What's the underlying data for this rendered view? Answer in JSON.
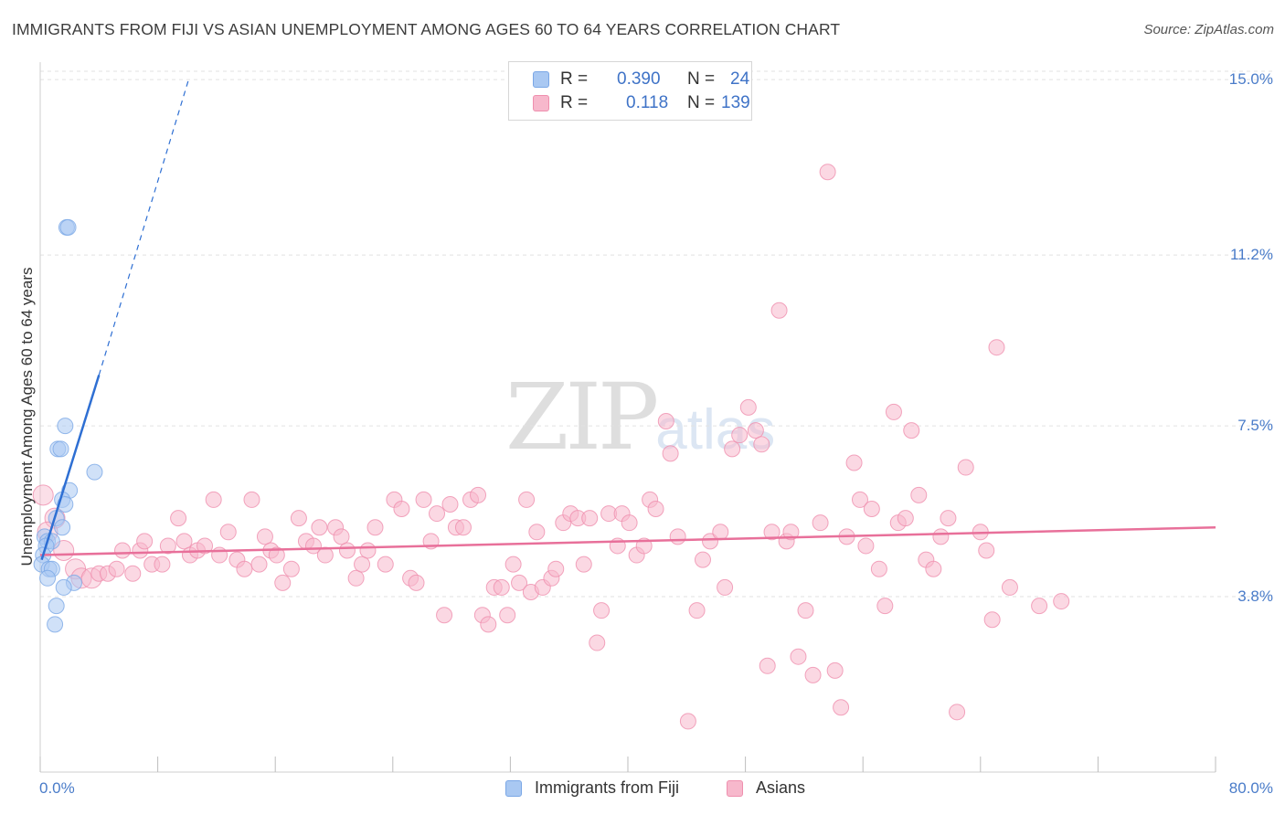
{
  "title": "IMMIGRANTS FROM FIJI VS ASIAN UNEMPLOYMENT AMONG AGES 60 TO 64 YEARS CORRELATION CHART",
  "source": "Source: ZipAtlas.com",
  "watermark": {
    "zip": "ZIP",
    "atlas": "atlas"
  },
  "legend": {
    "rows": [
      {
        "r_label": "R =",
        "r_value": "0.390",
        "n_label": "N =",
        "n_value": "24",
        "color": "#a9c8f2"
      },
      {
        "r_label": "R =",
        "r_value": "0.118",
        "n_label": "N =",
        "n_value": "139",
        "color": "#f7b8cc"
      }
    ]
  },
  "bottom_legend": [
    {
      "label": "Immigrants from Fiji",
      "color": "#a9c8f2"
    },
    {
      "label": "Asians",
      "color": "#f7b8cc"
    }
  ],
  "chart_data": {
    "type": "scatter",
    "title": "IMMIGRANTS FROM FIJI VS ASIAN UNEMPLOYMENT AMONG AGES 60 TO 64 YEARS CORRELATION CHART",
    "xlabel": "",
    "ylabel": "Unemployment Among Ages 60 to 64 years",
    "xlim": [
      0,
      80
    ],
    "ylim": [
      0,
      15.3
    ],
    "x_tick_labels": [
      "0.0%",
      "80.0%"
    ],
    "y_ticks": [
      3.8,
      7.5,
      11.2,
      15.0
    ],
    "y_tick_labels": [
      "3.8%",
      "7.5%",
      "11.2%",
      "15.0%"
    ],
    "grid": "horizontal dashed",
    "series": [
      {
        "name": "Immigrants from Fiji",
        "color": "#7aa7e6",
        "fill": "#a9c8f2",
        "trend": {
          "x0": 0.1,
          "y0": 4.6,
          "x1": 4.0,
          "y1": 8.6,
          "dashed_to_x": 10.1,
          "dashed_to_y": 15.0,
          "color": "#2e6fd3"
        },
        "points": [
          [
            1.8,
            11.8
          ],
          [
            1.9,
            11.8
          ],
          [
            1.7,
            7.5
          ],
          [
            1.2,
            7.0
          ],
          [
            1.4,
            7.0
          ],
          [
            3.7,
            6.5
          ],
          [
            2.0,
            6.1
          ],
          [
            1.5,
            5.9
          ],
          [
            1.7,
            5.8
          ],
          [
            1.1,
            5.5
          ],
          [
            1.5,
            5.3
          ],
          [
            0.3,
            5.1
          ],
          [
            0.5,
            5.0
          ],
          [
            0.8,
            5.0
          ],
          [
            0.4,
            4.9
          ],
          [
            0.2,
            4.7
          ],
          [
            0.1,
            4.5
          ],
          [
            0.6,
            4.4
          ],
          [
            0.8,
            4.4
          ],
          [
            0.5,
            4.2
          ],
          [
            2.3,
            4.1
          ],
          [
            1.6,
            4.0
          ],
          [
            1.1,
            3.6
          ],
          [
            1.0,
            3.2
          ]
        ]
      },
      {
        "name": "Asians",
        "color": "#ef8fae",
        "fill": "#f7b8cc",
        "trend": {
          "x0": 0.0,
          "y0": 4.7,
          "x1": 80.0,
          "y1": 5.3,
          "color": "#e8709a"
        },
        "points": [
          [
            0.2,
            6.0
          ],
          [
            1.0,
            5.5
          ],
          [
            0.5,
            5.2
          ],
          [
            1.6,
            4.8
          ],
          [
            2.4,
            4.4
          ],
          [
            2.8,
            4.2
          ],
          [
            3.5,
            4.2
          ],
          [
            4.0,
            4.3
          ],
          [
            4.6,
            4.3
          ],
          [
            5.2,
            4.4
          ],
          [
            5.6,
            4.8
          ],
          [
            6.3,
            4.3
          ],
          [
            6.8,
            4.8
          ],
          [
            7.1,
            5.0
          ],
          [
            7.6,
            4.5
          ],
          [
            8.3,
            4.5
          ],
          [
            8.7,
            4.9
          ],
          [
            9.4,
            5.5
          ],
          [
            9.8,
            5.0
          ],
          [
            10.2,
            4.7
          ],
          [
            10.7,
            4.8
          ],
          [
            11.2,
            4.9
          ],
          [
            11.8,
            5.9
          ],
          [
            12.2,
            4.7
          ],
          [
            12.8,
            5.2
          ],
          [
            13.4,
            4.6
          ],
          [
            13.9,
            4.4
          ],
          [
            14.4,
            5.9
          ],
          [
            14.9,
            4.5
          ],
          [
            15.3,
            5.1
          ],
          [
            15.7,
            4.8
          ],
          [
            16.1,
            4.7
          ],
          [
            16.5,
            4.1
          ],
          [
            17.1,
            4.4
          ],
          [
            17.6,
            5.5
          ],
          [
            18.1,
            5.0
          ],
          [
            18.6,
            4.9
          ],
          [
            19.0,
            5.3
          ],
          [
            19.4,
            4.7
          ],
          [
            20.1,
            5.3
          ],
          [
            20.5,
            5.1
          ],
          [
            20.9,
            4.8
          ],
          [
            21.5,
            4.2
          ],
          [
            21.9,
            4.5
          ],
          [
            22.3,
            4.8
          ],
          [
            22.8,
            5.3
          ],
          [
            23.5,
            4.5
          ],
          [
            24.1,
            5.9
          ],
          [
            24.6,
            5.7
          ],
          [
            25.2,
            4.2
          ],
          [
            25.6,
            4.1
          ],
          [
            26.1,
            5.9
          ],
          [
            26.6,
            5.0
          ],
          [
            27.0,
            5.6
          ],
          [
            27.5,
            3.4
          ],
          [
            27.9,
            5.8
          ],
          [
            28.3,
            5.3
          ],
          [
            28.8,
            5.3
          ],
          [
            29.3,
            5.9
          ],
          [
            29.8,
            6.0
          ],
          [
            30.1,
            3.4
          ],
          [
            30.5,
            3.2
          ],
          [
            30.9,
            4.0
          ],
          [
            31.4,
            4.0
          ],
          [
            31.8,
            3.4
          ],
          [
            32.2,
            4.5
          ],
          [
            32.6,
            4.1
          ],
          [
            33.1,
            5.9
          ],
          [
            33.4,
            3.9
          ],
          [
            33.8,
            5.2
          ],
          [
            34.2,
            4.0
          ],
          [
            34.8,
            4.2
          ],
          [
            35.1,
            4.4
          ],
          [
            35.6,
            5.4
          ],
          [
            36.1,
            5.6
          ],
          [
            36.6,
            5.5
          ],
          [
            37.0,
            4.5
          ],
          [
            37.4,
            5.5
          ],
          [
            37.9,
            2.8
          ],
          [
            38.2,
            3.5
          ],
          [
            38.7,
            5.6
          ],
          [
            39.3,
            4.9
          ],
          [
            39.6,
            5.6
          ],
          [
            40.1,
            5.4
          ],
          [
            40.6,
            4.7
          ],
          [
            41.1,
            4.9
          ],
          [
            41.5,
            5.9
          ],
          [
            41.9,
            5.7
          ],
          [
            42.6,
            7.6
          ],
          [
            42.9,
            6.9
          ],
          [
            43.4,
            5.1
          ],
          [
            44.1,
            1.1
          ],
          [
            44.7,
            3.5
          ],
          [
            45.1,
            4.6
          ],
          [
            45.6,
            5.0
          ],
          [
            46.3,
            5.2
          ],
          [
            46.6,
            4.0
          ],
          [
            47.1,
            7.0
          ],
          [
            47.6,
            7.3
          ],
          [
            48.2,
            7.9
          ],
          [
            48.7,
            7.4
          ],
          [
            49.1,
            7.1
          ],
          [
            49.5,
            2.3
          ],
          [
            49.8,
            5.2
          ],
          [
            50.3,
            10.0
          ],
          [
            50.8,
            5.0
          ],
          [
            51.1,
            5.2
          ],
          [
            51.6,
            2.5
          ],
          [
            52.1,
            3.5
          ],
          [
            52.6,
            2.1
          ],
          [
            53.1,
            5.4
          ],
          [
            53.6,
            13.0
          ],
          [
            54.1,
            2.2
          ],
          [
            54.5,
            1.4
          ],
          [
            54.9,
            5.1
          ],
          [
            55.4,
            6.7
          ],
          [
            55.8,
            5.9
          ],
          [
            56.2,
            4.9
          ],
          [
            56.6,
            5.7
          ],
          [
            57.1,
            4.4
          ],
          [
            57.5,
            3.6
          ],
          [
            58.1,
            7.8
          ],
          [
            58.4,
            5.4
          ],
          [
            58.9,
            5.5
          ],
          [
            59.3,
            7.4
          ],
          [
            59.8,
            6.0
          ],
          [
            60.3,
            4.6
          ],
          [
            60.8,
            4.4
          ],
          [
            61.3,
            5.1
          ],
          [
            61.8,
            5.5
          ],
          [
            62.4,
            1.3
          ],
          [
            63.0,
            6.6
          ],
          [
            64.0,
            5.2
          ],
          [
            64.4,
            4.8
          ],
          [
            64.8,
            3.3
          ],
          [
            65.1,
            9.2
          ],
          [
            66.0,
            4.0
          ],
          [
            68.0,
            3.6
          ],
          [
            69.5,
            3.7
          ]
        ]
      }
    ]
  }
}
